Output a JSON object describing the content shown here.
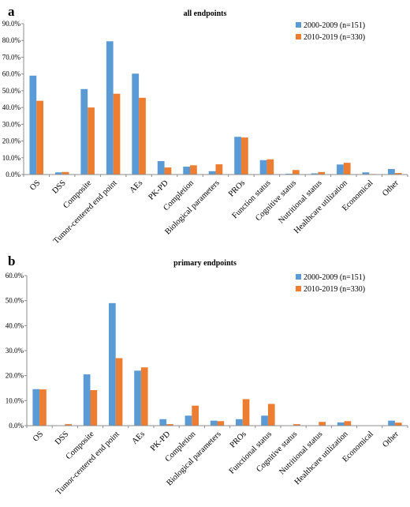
{
  "chart_data": [
    {
      "type": "bar",
      "panel_label": "a",
      "title": "all endpoints",
      "categories": [
        "OS",
        "DSS",
        "Composite",
        "Tumor-centered end point",
        "AEs",
        "PK-PD",
        "Completion",
        "Biological parameters",
        "PROs",
        "Function status",
        "Cognitive status",
        "Nutritional status",
        "Healthcare utilization",
        "Economical",
        "Other"
      ],
      "series": [
        {
          "name": "2000-2009 (n=151)",
          "color": "#5b9bd5",
          "values": [
            59.0,
            1.3,
            51.0,
            79.5,
            60.2,
            8.0,
            4.7,
            2.0,
            22.5,
            8.6,
            0.5,
            0.7,
            6.0,
            1.3,
            3.3
          ]
        },
        {
          "name": "2010-2019 (n=330)",
          "color": "#ed7d31",
          "values": [
            44.0,
            1.5,
            40.0,
            48.2,
            45.8,
            4.2,
            5.5,
            6.1,
            22.1,
            9.1,
            2.7,
            1.5,
            7.0,
            0.3,
            0.9
          ]
        }
      ],
      "yticks": [
        "0.0%",
        "10.0%",
        "20.0%",
        "30.0%",
        "40.0%",
        "50.0%",
        "60.0%",
        "70.0%",
        "80.0%",
        "90.0%"
      ],
      "ylim": [
        0,
        90
      ],
      "grid": false,
      "legend_position": "top-right"
    },
    {
      "type": "bar",
      "panel_label": "b",
      "title": "primary endpoints",
      "categories": [
        "OS",
        "DSS",
        "Composite",
        "Tumor-centered end point",
        "AEs",
        "PK-PD",
        "Completion",
        "Biological parameters",
        "PROs",
        "Functional status",
        "Cognitive status",
        "Nutritional status",
        "Healthcare utilization",
        "Economical",
        "Other"
      ],
      "series": [
        {
          "name": "2000-2009 (n=151)",
          "color": "#5b9bd5",
          "values": [
            14.6,
            0.0,
            20.5,
            49.0,
            22.0,
            2.6,
            4.0,
            2.0,
            2.6,
            4.0,
            0.0,
            0.0,
            1.3,
            0.0,
            2.0
          ]
        },
        {
          "name": "2010-2019 (n=330)",
          "color": "#ed7d31",
          "values": [
            14.5,
            0.6,
            14.2,
            27.0,
            23.3,
            0.6,
            8.0,
            1.8,
            10.6,
            8.7,
            0.6,
            1.5,
            1.8,
            0.0,
            1.2
          ]
        }
      ],
      "yticks": [
        "0.0%",
        "10.0%",
        "20.0%",
        "30.0%",
        "40.0%",
        "50.0%",
        "60.0%"
      ],
      "ylim": [
        0,
        60
      ],
      "grid": false,
      "legend_position": "top-right"
    }
  ]
}
